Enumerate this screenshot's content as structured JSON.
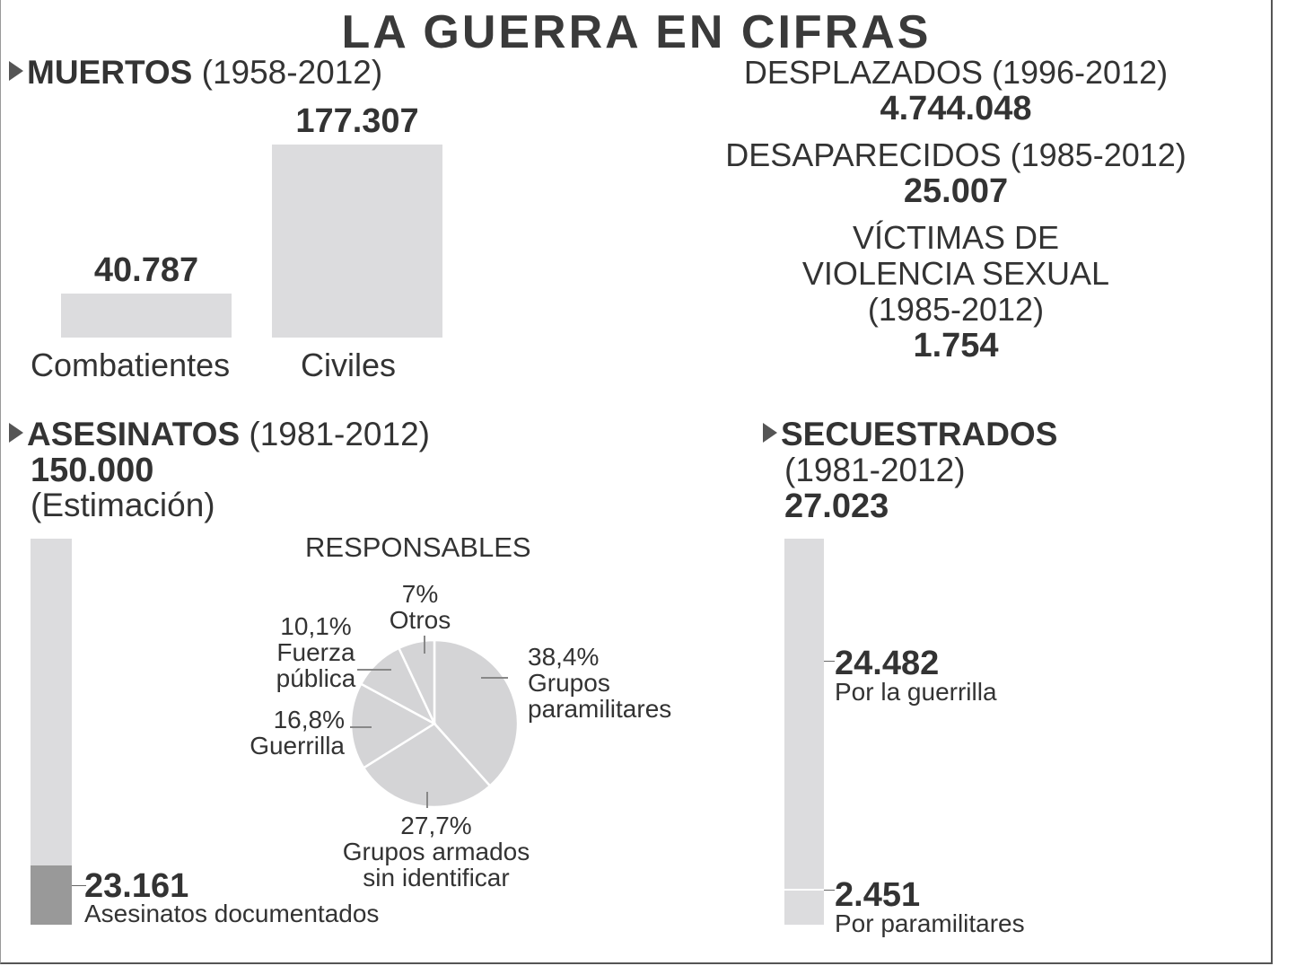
{
  "title": "LA GUERRA EN CIFRAS",
  "muertos": {
    "label": "MUERTOS",
    "period": "(1958-2012)",
    "chart_data": {
      "type": "bar",
      "categories": [
        "Combatientes",
        "Civiles"
      ],
      "values": [
        40787,
        177307
      ],
      "value_labels": [
        "40.787",
        "177.307"
      ]
    }
  },
  "desplazados": {
    "label": "DESPLAZADOS (1996-2012)",
    "value": "4.744.048"
  },
  "desaparecidos": {
    "label": "DESAPARECIDOS (1985-2012)",
    "value": "25.007"
  },
  "violencia_sexual": {
    "line1": "VÍCTIMAS DE",
    "line2": "VIOLENCIA SEXUAL",
    "line3": "(1985-2012)",
    "value": "1.754"
  },
  "asesinatos": {
    "label": "ASESINATOS",
    "period": "(1981-2012)",
    "total": "150.000",
    "note": "(Estimación)",
    "total_value": 150000,
    "documented_value": 23161,
    "documented_label": "23.161",
    "documented_text": "Asesinatos documentados"
  },
  "responsables": {
    "title": "RESPONSABLES",
    "chart_data": {
      "type": "pie",
      "slices": [
        {
          "pct_label": "38,4%",
          "lines": [
            "Grupos",
            "paramilitares"
          ],
          "value": 38.4
        },
        {
          "pct_label": "27,7%",
          "lines": [
            "Grupos armados",
            "sin identificar"
          ],
          "value": 27.7
        },
        {
          "pct_label": "16,8%",
          "lines": [
            "Guerrilla"
          ],
          "value": 16.8
        },
        {
          "pct_label": "10,1%",
          "lines": [
            "Fuerza",
            "pública"
          ],
          "value": 10.1
        },
        {
          "pct_label": "7%",
          "lines": [
            "Otros"
          ],
          "value": 7
        }
      ]
    }
  },
  "secuestrados": {
    "label": "SECUESTRADOS",
    "period": "(1981-2012)",
    "total": "27.023",
    "total_value": 27023,
    "guerrilla_value": 24482,
    "guerrilla_label": "24.482",
    "guerrilla_text": "Por la guerrilla",
    "paramilitares_value": 2451,
    "paramilitares_label": "2.451",
    "paramilitares_text": "Por paramilitares"
  },
  "colors": {
    "bar": "#dcdcde",
    "dark_bar": "#999999",
    "pie": "#d4d4d6",
    "text": "#333333"
  }
}
